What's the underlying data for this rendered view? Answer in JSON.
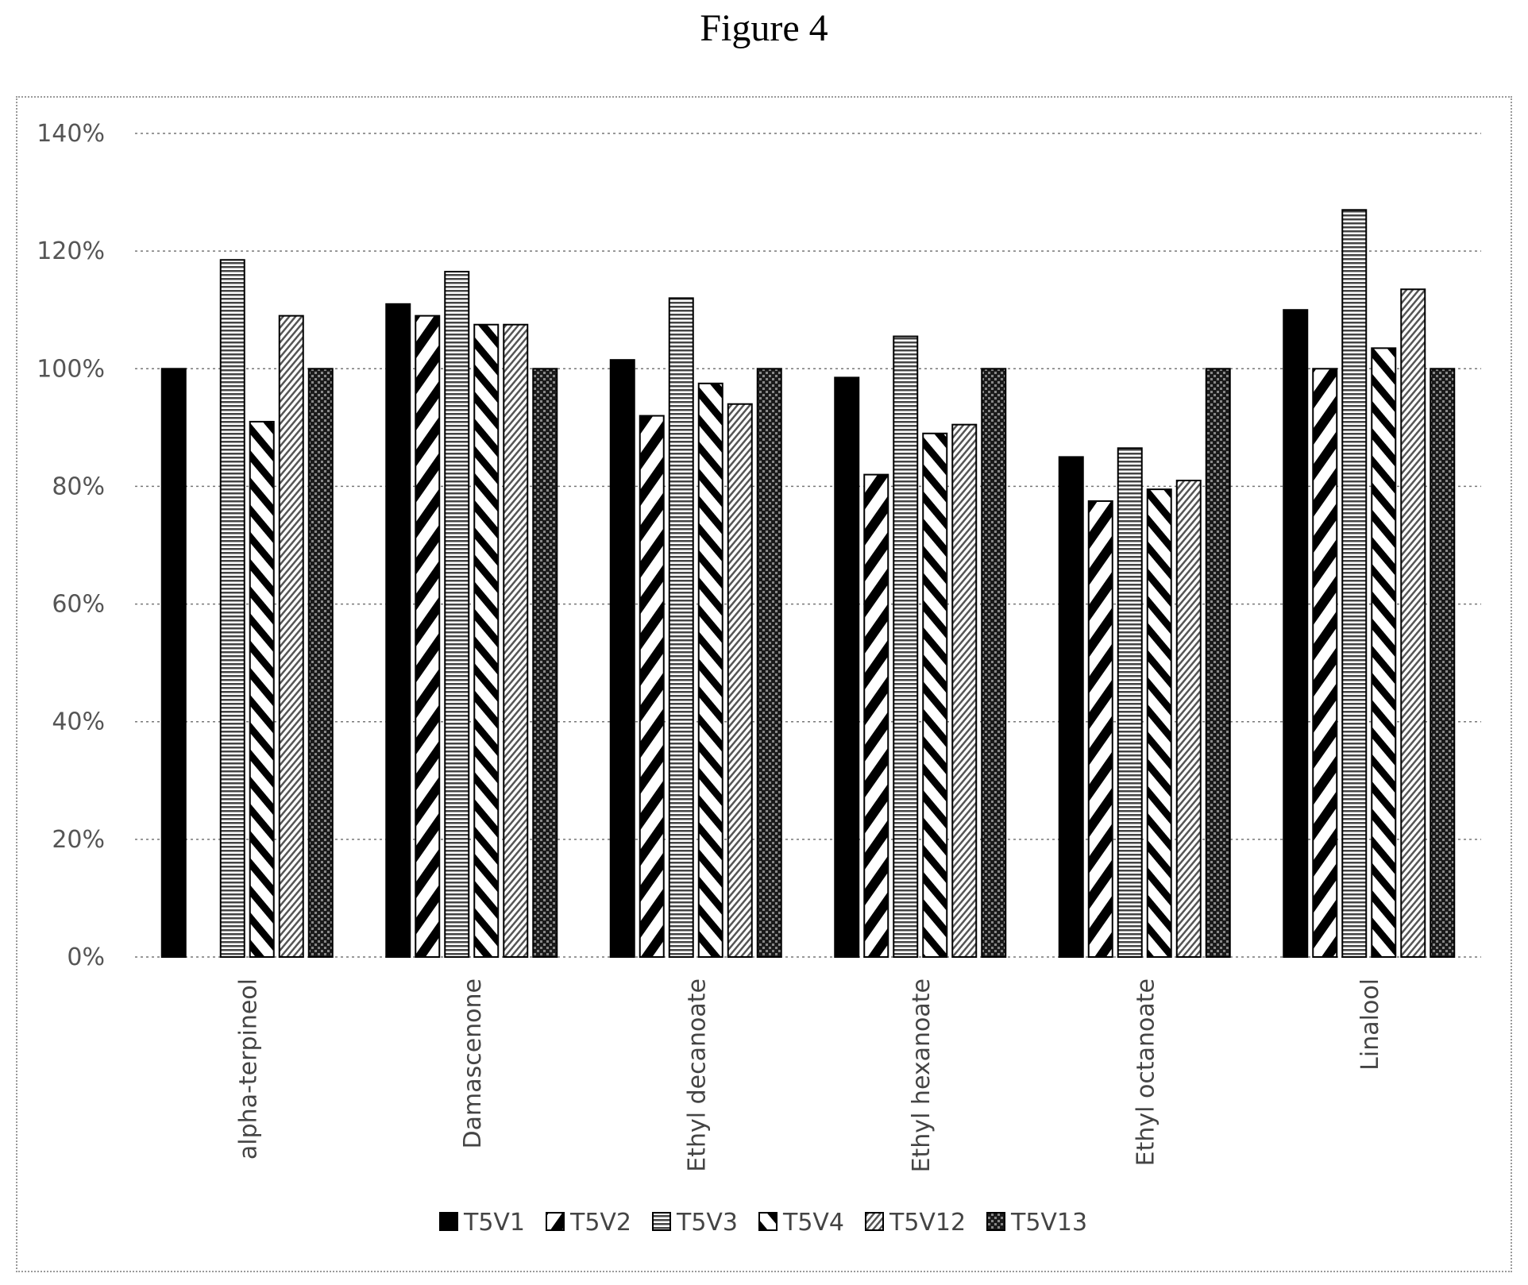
{
  "figure_title": "Figure 4",
  "chart_data": {
    "type": "bar",
    "categories": [
      "alpha-terpineol",
      "Damascenone",
      "Ethyl decanoate",
      "Ethyl hexanoate",
      "Ethyl octanoate",
      "Linalool"
    ],
    "series": [
      {
        "name": "T5V1",
        "pattern": "solid",
        "values": [
          1.0,
          1.11,
          1.015,
          0.985,
          0.85,
          1.1
        ]
      },
      {
        "name": "T5V2",
        "pattern": "diag-thick",
        "values": [
          0.0,
          1.09,
          0.92,
          0.82,
          0.775,
          1.0
        ]
      },
      {
        "name": "T5V3",
        "pattern": "horiz",
        "values": [
          1.185,
          1.165,
          1.12,
          1.055,
          0.865,
          1.27
        ]
      },
      {
        "name": "T5V4",
        "pattern": "diag-rev",
        "values": [
          0.91,
          1.075,
          0.975,
          0.89,
          0.795,
          1.035
        ]
      },
      {
        "name": "T5V12",
        "pattern": "diag-fine",
        "values": [
          1.09,
          1.075,
          0.94,
          0.905,
          0.81,
          1.135
        ]
      },
      {
        "name": "T5V13",
        "pattern": "checker",
        "values": [
          1.0,
          1.0,
          1.0,
          1.0,
          1.0,
          1.0
        ]
      }
    ],
    "y_ticks": [
      "0%",
      "20%",
      "40%",
      "60%",
      "80%",
      "100%",
      "120%",
      "140%"
    ],
    "ylim": [
      0,
      1.4
    ],
    "grid": true,
    "legend_position": "bottom",
    "xlabel": "",
    "ylabel": ""
  }
}
